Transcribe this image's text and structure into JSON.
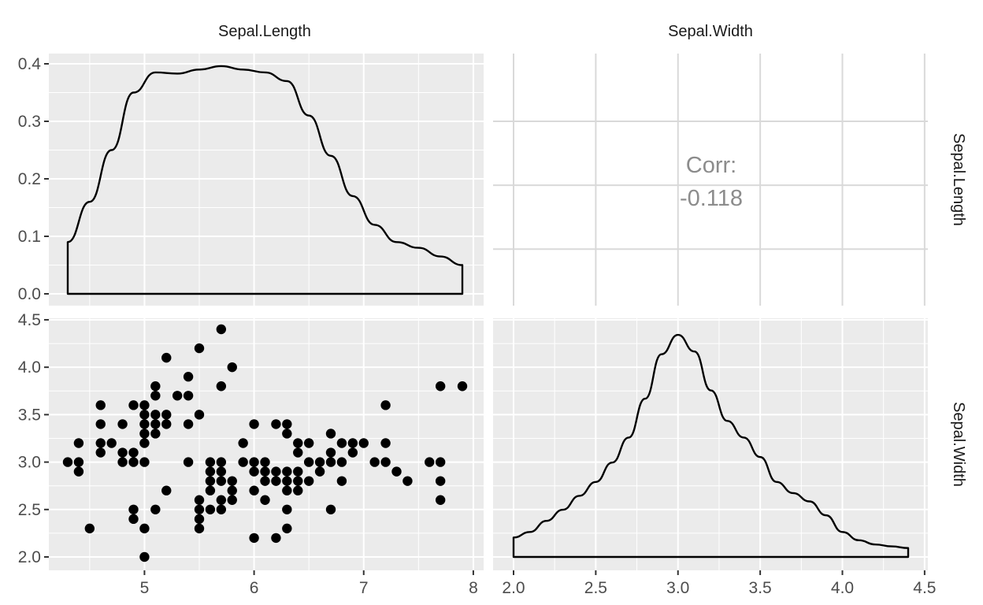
{
  "chart_data": {
    "type": "scatter",
    "variables": [
      "Sepal.Length",
      "Sepal.Width"
    ],
    "panel_backgrounds": {
      "panel": "#EBEBEB",
      "grid": "#FFFFFF",
      "correlation_panel": "#FFFFFF",
      "correlation_grid": "#D9D9D9"
    },
    "colors": {
      "text": "#1A1A1A",
      "axis_text": "#4D4D4D",
      "correlation_text": "#8C8C8C",
      "mark": "#000000"
    },
    "axes": {
      "sepal_length_x": {
        "range": [
          4.3,
          7.9
        ],
        "ticks": [
          5,
          6,
          7,
          8
        ],
        "tick_labels": [
          "5",
          "6",
          "7",
          "8"
        ]
      },
      "sepal_width_x": {
        "range": [
          2.0,
          4.4
        ],
        "ticks": [
          2.0,
          2.5,
          3.0,
          3.5,
          4.0,
          4.5
        ],
        "tick_labels": [
          "2.0",
          "2.5",
          "3.0",
          "3.5",
          "4.0",
          "4.5"
        ]
      },
      "density_y": {
        "range": [
          0.0,
          0.4
        ],
        "ticks": [
          0.0,
          0.1,
          0.2,
          0.3,
          0.4
        ],
        "tick_labels": [
          "0.0",
          "0.1",
          "0.2",
          "0.3",
          "0.4"
        ]
      },
      "sepal_width_y": {
        "range": [
          2.0,
          4.4
        ],
        "ticks": [
          2.0,
          2.5,
          3.0,
          3.5,
          4.0,
          4.5
        ],
        "tick_labels": [
          "2.0",
          "2.5",
          "3.0",
          "3.5",
          "4.0",
          "4.5"
        ]
      }
    },
    "panels": [
      {
        "id": "density-sepal-length",
        "row": "Sepal.Length",
        "col": "Sepal.Length",
        "type": "area",
        "x": [
          4.3,
          4.5,
          4.7,
          4.9,
          5.1,
          5.3,
          5.5,
          5.7,
          5.9,
          6.1,
          6.3,
          6.5,
          6.7,
          6.9,
          7.1,
          7.3,
          7.5,
          7.7,
          7.9
        ],
        "y": [
          0.09,
          0.16,
          0.25,
          0.35,
          0.385,
          0.383,
          0.39,
          0.396,
          0.39,
          0.385,
          0.37,
          0.31,
          0.24,
          0.17,
          0.12,
          0.09,
          0.08,
          0.065,
          0.05
        ]
      },
      {
        "id": "correlation",
        "row": "Sepal.Length",
        "col": "Sepal.Width",
        "type": "table",
        "label": "Corr:",
        "value": "-0.118",
        "x_range": [
          2.0,
          4.4
        ],
        "y_range": [
          4.3,
          7.9
        ]
      },
      {
        "id": "scatter-sepal-width-vs-length",
        "row": "Sepal.Width",
        "col": "Sepal.Length",
        "type": "scatter",
        "points": [
          [
            4.3,
            3.0
          ],
          [
            4.4,
            2.9
          ],
          [
            4.4,
            3.0
          ],
          [
            4.4,
            3.2
          ],
          [
            4.5,
            2.3
          ],
          [
            4.6,
            3.1
          ],
          [
            4.6,
            3.2
          ],
          [
            4.6,
            3.4
          ],
          [
            4.6,
            3.6
          ],
          [
            4.7,
            3.2
          ],
          [
            4.8,
            3.0
          ],
          [
            4.8,
            3.1
          ],
          [
            4.8,
            3.4
          ],
          [
            4.9,
            2.4
          ],
          [
            4.9,
            2.5
          ],
          [
            4.9,
            3.0
          ],
          [
            4.9,
            3.1
          ],
          [
            4.9,
            3.6
          ],
          [
            5.0,
            2.0
          ],
          [
            5.0,
            2.3
          ],
          [
            5.0,
            3.0
          ],
          [
            5.0,
            3.2
          ],
          [
            5.0,
            3.3
          ],
          [
            5.0,
            3.4
          ],
          [
            5.0,
            3.5
          ],
          [
            5.0,
            3.6
          ],
          [
            5.1,
            2.5
          ],
          [
            5.1,
            3.3
          ],
          [
            5.1,
            3.4
          ],
          [
            5.1,
            3.5
          ],
          [
            5.1,
            3.7
          ],
          [
            5.1,
            3.8
          ],
          [
            5.2,
            2.7
          ],
          [
            5.2,
            3.4
          ],
          [
            5.2,
            3.5
          ],
          [
            5.2,
            4.1
          ],
          [
            5.3,
            3.7
          ],
          [
            5.4,
            3.0
          ],
          [
            5.4,
            3.4
          ],
          [
            5.4,
            3.7
          ],
          [
            5.4,
            3.9
          ],
          [
            5.5,
            2.3
          ],
          [
            5.5,
            2.4
          ],
          [
            5.5,
            2.5
          ],
          [
            5.5,
            2.6
          ],
          [
            5.5,
            3.5
          ],
          [
            5.5,
            4.2
          ],
          [
            5.6,
            2.5
          ],
          [
            5.6,
            2.7
          ],
          [
            5.6,
            2.8
          ],
          [
            5.6,
            2.9
          ],
          [
            5.6,
            3.0
          ],
          [
            5.7,
            2.5
          ],
          [
            5.7,
            2.6
          ],
          [
            5.7,
            2.8
          ],
          [
            5.7,
            2.9
          ],
          [
            5.7,
            3.0
          ],
          [
            5.7,
            3.8
          ],
          [
            5.7,
            4.4
          ],
          [
            5.8,
            2.6
          ],
          [
            5.8,
            2.7
          ],
          [
            5.8,
            2.8
          ],
          [
            5.8,
            4.0
          ],
          [
            5.9,
            3.0
          ],
          [
            5.9,
            3.2
          ],
          [
            6.0,
            2.2
          ],
          [
            6.0,
            2.7
          ],
          [
            6.0,
            2.9
          ],
          [
            6.0,
            3.0
          ],
          [
            6.0,
            3.4
          ],
          [
            6.1,
            2.6
          ],
          [
            6.1,
            2.8
          ],
          [
            6.1,
            2.9
          ],
          [
            6.1,
            3.0
          ],
          [
            6.2,
            2.2
          ],
          [
            6.2,
            2.8
          ],
          [
            6.2,
            2.9
          ],
          [
            6.2,
            3.4
          ],
          [
            6.3,
            2.3
          ],
          [
            6.3,
            2.5
          ],
          [
            6.3,
            2.7
          ],
          [
            6.3,
            2.8
          ],
          [
            6.3,
            2.9
          ],
          [
            6.3,
            3.3
          ],
          [
            6.3,
            3.4
          ],
          [
            6.4,
            2.7
          ],
          [
            6.4,
            2.8
          ],
          [
            6.4,
            2.9
          ],
          [
            6.4,
            3.1
          ],
          [
            6.4,
            3.2
          ],
          [
            6.5,
            2.8
          ],
          [
            6.5,
            3.0
          ],
          [
            6.5,
            3.2
          ],
          [
            6.6,
            2.9
          ],
          [
            6.6,
            3.0
          ],
          [
            6.7,
            2.5
          ],
          [
            6.7,
            3.0
          ],
          [
            6.7,
            3.1
          ],
          [
            6.7,
            3.3
          ],
          [
            6.8,
            2.8
          ],
          [
            6.8,
            3.0
          ],
          [
            6.8,
            3.2
          ],
          [
            6.9,
            3.1
          ],
          [
            6.9,
            3.2
          ],
          [
            7.0,
            3.2
          ],
          [
            7.1,
            3.0
          ],
          [
            7.2,
            3.0
          ],
          [
            7.2,
            3.2
          ],
          [
            7.2,
            3.6
          ],
          [
            7.3,
            2.9
          ],
          [
            7.4,
            2.8
          ],
          [
            7.6,
            3.0
          ],
          [
            7.7,
            2.6
          ],
          [
            7.7,
            2.8
          ],
          [
            7.7,
            3.0
          ],
          [
            7.7,
            3.8
          ],
          [
            7.9,
            3.8
          ]
        ]
      },
      {
        "id": "density-sepal-width",
        "row": "Sepal.Width",
        "col": "Sepal.Width",
        "type": "area",
        "x": [
          2.0,
          2.1,
          2.2,
          2.3,
          2.4,
          2.5,
          2.6,
          2.7,
          2.8,
          2.9,
          3.0,
          3.1,
          3.2,
          3.3,
          3.4,
          3.5,
          3.6,
          3.7,
          3.8,
          3.9,
          4.0,
          4.1,
          4.2,
          4.3,
          4.4
        ],
        "y": [
          0.07,
          0.09,
          0.13,
          0.17,
          0.22,
          0.27,
          0.34,
          0.43,
          0.57,
          0.73,
          0.8,
          0.74,
          0.6,
          0.49,
          0.43,
          0.36,
          0.27,
          0.23,
          0.2,
          0.15,
          0.09,
          0.06,
          0.045,
          0.038,
          0.032
        ]
      }
    ]
  }
}
